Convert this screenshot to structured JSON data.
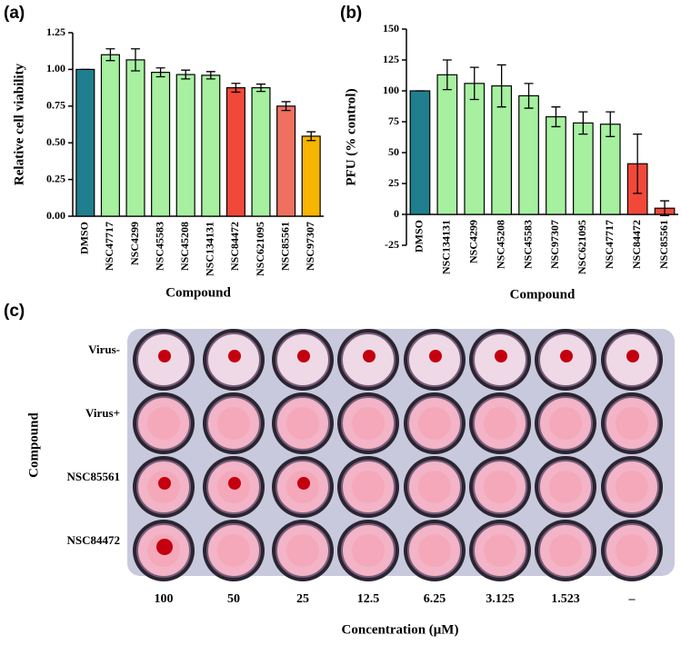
{
  "chart_data": [
    {
      "type": "bar",
      "panel_label": "(a)",
      "ylabel": "Relative cell viability",
      "xlabel": "Compound",
      "categories": [
        "DMSO",
        "NSC47717",
        "NSC4299",
        "NSC45583",
        "NSC45208",
        "NSC134131",
        "NSC84472",
        "NSC621095",
        "NSC85561",
        "NSC97307"
      ],
      "series": [
        {
          "values": [
            1.0,
            1.1,
            1.065,
            0.98,
            0.965,
            0.96,
            0.875,
            0.875,
            0.75,
            0.545
          ],
          "errors": [
            0,
            0.04,
            0.075,
            0.03,
            0.03,
            0.025,
            0.03,
            0.025,
            0.03,
            0.03
          ],
          "colors": [
            "#1f7f8e",
            "#a6f0a0",
            "#a6f0a0",
            "#a6f0a0",
            "#a6f0a0",
            "#a6f0a0",
            "#f2483a",
            "#a6f0a0",
            "#f07060",
            "#f7b500"
          ]
        }
      ],
      "ylim": [
        0,
        1.25
      ],
      "yticks": [
        {
          "value": 0,
          "label": "0.00"
        },
        {
          "value": 0.25,
          "label": "0.25"
        },
        {
          "value": 0.5,
          "label": "0.50"
        },
        {
          "value": 0.75,
          "label": "0.75"
        },
        {
          "value": 1,
          "label": "1.00"
        },
        {
          "value": 1.25,
          "label": "1.25"
        }
      ]
    },
    {
      "type": "bar",
      "panel_label": "(b)",
      "ylabel": "PFU (% control)",
      "xlabel": "Compound",
      "categories": [
        "DMSO",
        "NSC134131",
        "NSC4299",
        "NSC45208",
        "NSC45583",
        "NSC97307",
        "NSC621095",
        "NSC47717",
        "NSC84472",
        "NSC85561"
      ],
      "series": [
        {
          "values": [
            100,
            113,
            106,
            104,
            96,
            79,
            74,
            73,
            41,
            5
          ],
          "errors": [
            0,
            12,
            13,
            17,
            10,
            8,
            9,
            10,
            24,
            6
          ],
          "colors": [
            "#1f7f8e",
            "#a6f0a0",
            "#a6f0a0",
            "#a6f0a0",
            "#a6f0a0",
            "#a6f0a0",
            "#a6f0a0",
            "#a6f0a0",
            "#f2483a",
            "#f2483a"
          ]
        }
      ],
      "ylim": [
        -25,
        150
      ],
      "yticks": [
        -25,
        0,
        25,
        50,
        75,
        100,
        125,
        150
      ]
    }
  ],
  "plate": {
    "panel_label": "(c)",
    "ylabel": "Compound",
    "xlabel": "Concentration (μM)",
    "rows": [
      "Virus-",
      "Virus+",
      "NSC85561",
      "NSC84472"
    ],
    "columns": [
      "100",
      "50",
      "25",
      "12.5",
      "6.25",
      "3.125",
      "1.523",
      "–"
    ]
  }
}
